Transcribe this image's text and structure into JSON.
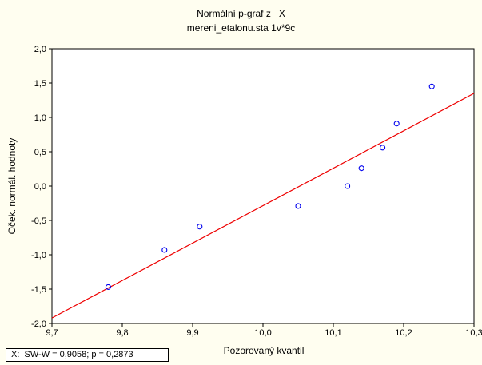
{
  "chart_data": {
    "type": "scatter",
    "title": "Normální p-graf z   X",
    "subtitle": "mereni_etalonu.sta 1v*9c",
    "xlabel": "Pozorovaný kvantil",
    "ylabel": "Oček. normál. hodnoty",
    "xlim": [
      9.7,
      10.3
    ],
    "ylim": [
      -2.0,
      2.0
    ],
    "x_ticks": [
      "9,7",
      "9,8",
      "9,9",
      "10,0",
      "10,1",
      "10,2",
      "10,3"
    ],
    "y_ticks": [
      "2,0",
      "1,5",
      "1,0",
      "0,5",
      "0,0",
      "-0,5",
      "-1,0",
      "-1,5",
      "-2,0"
    ],
    "points": [
      {
        "x": 9.78,
        "y": -1.47
      },
      {
        "x": 9.86,
        "y": -0.93
      },
      {
        "x": 9.91,
        "y": -0.59
      },
      {
        "x": 10.05,
        "y": -0.29
      },
      {
        "x": 10.12,
        "y": 0.0
      },
      {
        "x": 10.14,
        "y": 0.26
      },
      {
        "x": 10.17,
        "y": 0.56
      },
      {
        "x": 10.19,
        "y": 0.91
      },
      {
        "x": 10.24,
        "y": 1.45
      }
    ],
    "fit_line": [
      {
        "x": 9.7,
        "y": -1.92
      },
      {
        "x": 10.3,
        "y": 1.35
      }
    ],
    "point_color": "#0000ee",
    "line_color": "#ee0000",
    "grid": false,
    "stats": "X:  SW-W = 0,9058; p = 0,2873"
  }
}
